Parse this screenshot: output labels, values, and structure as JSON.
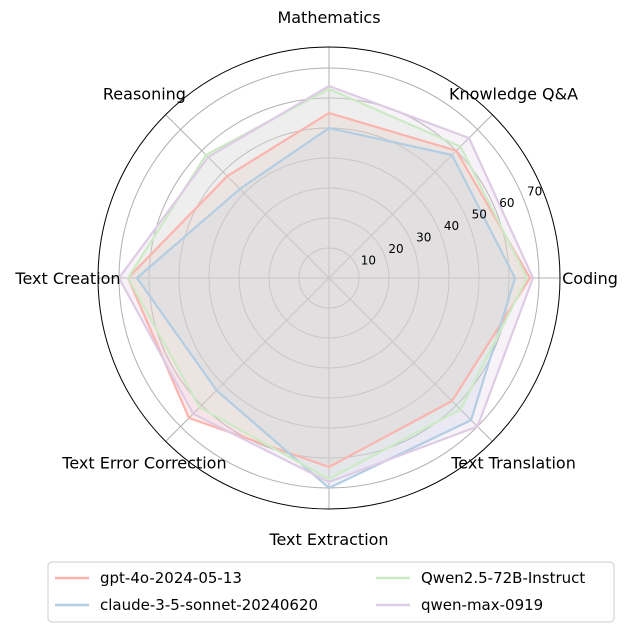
{
  "chart_data": {
    "type": "radar",
    "axes": [
      "Mathematics",
      "Knowledge Q&A",
      "Coding",
      "Text Translation",
      "Text Extraction",
      "Text Error Correction",
      "Text Creation",
      "Reasoning"
    ],
    "rlim": [
      0,
      77
    ],
    "rticks": [
      10,
      20,
      30,
      40,
      50,
      60,
      70
    ],
    "grid": true,
    "legend_position": "bottom",
    "series": [
      {
        "name": "gpt-4o-2024-05-13",
        "color": "#fbb4ae",
        "values": [
          55,
          60,
          67,
          58,
          63,
          66,
          67,
          48
        ]
      },
      {
        "name": "claude-3-5-sonnet-20240620",
        "color": "#b3cde3",
        "values": [
          50,
          58,
          62,
          67,
          70,
          53,
          64,
          42
        ]
      },
      {
        "name": "Qwen2.5-72B-Instruct",
        "color": "#ccebc5",
        "values": [
          63,
          62,
          66,
          62,
          67,
          61,
          67,
          58
        ]
      },
      {
        "name": "qwen-max-0919",
        "color": "#decbe4",
        "values": [
          64,
          66,
          68,
          70,
          68,
          64,
          70,
          57
        ]
      }
    ]
  }
}
